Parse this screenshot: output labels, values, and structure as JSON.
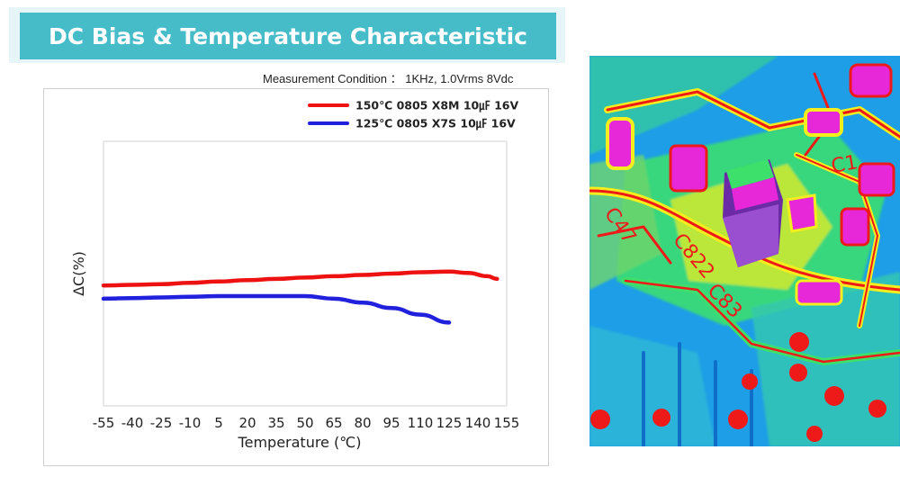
{
  "header": {
    "title": "DC Bias & Temperature Characteristic",
    "condition": "Measurement Condition ： 1KHz, 1.0Vrms 8Vdc"
  },
  "chart_data": {
    "type": "line",
    "xlabel": "Temperature (℃)",
    "ylabel": "ΔC(%)",
    "x_ticks": [
      -55,
      -40,
      -25,
      -10,
      5,
      20,
      35,
      50,
      65,
      80,
      95,
      110,
      125,
      140,
      155
    ],
    "xlim": [
      -55,
      155
    ],
    "ylim": [
      -100,
      100
    ],
    "grid": false,
    "legend_position": "top-right",
    "series": [
      {
        "name": "150℃ 0805 X8M 10㎌ 16V",
        "color": "#ee1111",
        "x": [
          -55,
          -40,
          -25,
          -10,
          5,
          20,
          35,
          50,
          65,
          80,
          95,
          110,
          125,
          135,
          145,
          150
        ],
        "values": [
          -9,
          -8.5,
          -8,
          -7,
          -6,
          -5,
          -4,
          -3,
          -2,
          -1,
          0,
          1,
          1.5,
          0.5,
          -2,
          -4
        ]
      },
      {
        "name": "125℃  0805 X7S  10㎌ 16V",
        "color": "#2020dd",
        "x": [
          -55,
          -40,
          -25,
          -10,
          5,
          20,
          35,
          50,
          65,
          80,
          95,
          110,
          125
        ],
        "values": [
          -19,
          -18.5,
          -18,
          -17.5,
          -17,
          -17,
          -17,
          -17,
          -19,
          -22,
          -26,
          -31,
          -37
        ]
      }
    ]
  },
  "thermal_image": {
    "labels": [
      "C47",
      "C822",
      "C83",
      "C1"
    ],
    "colors": {
      "base": "#1e9ee6",
      "green": "#3de06b",
      "yellow": "#f4ee1e",
      "red": "#ee1a1a",
      "magenta": "#e628d8",
      "purple": "#6b2aa6"
    }
  }
}
